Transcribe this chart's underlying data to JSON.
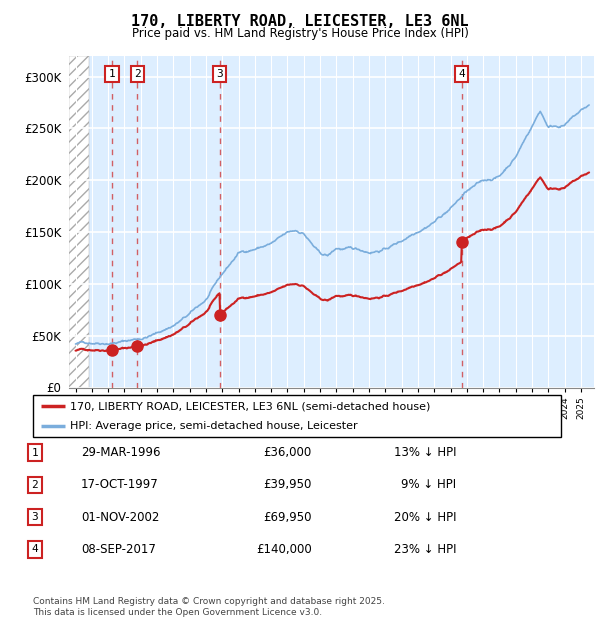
{
  "title": "170, LIBERTY ROAD, LEICESTER, LE3 6NL",
  "subtitle": "Price paid vs. HM Land Registry's House Price Index (HPI)",
  "ylim": [
    0,
    320000
  ],
  "yticks": [
    0,
    50000,
    100000,
    150000,
    200000,
    250000,
    300000
  ],
  "ytick_labels": [
    "£0",
    "£50K",
    "£100K",
    "£150K",
    "£200K",
    "£250K",
    "£300K"
  ],
  "hpi_color": "#7aaddc",
  "price_color": "#cc2222",
  "bg_color": "#ddeeff",
  "hatch_bg": "#e8e8e8",
  "transaction_years": [
    1996.25,
    1997.79,
    2002.84,
    2017.69
  ],
  "transaction_prices": [
    36000,
    39950,
    69950,
    140000
  ],
  "transaction_labels": [
    "1",
    "2",
    "3",
    "4"
  ],
  "legend_label_price": "170, LIBERTY ROAD, LEICESTER, LE3 6NL (semi-detached house)",
  "legend_label_hpi": "HPI: Average price, semi-detached house, Leicester",
  "table_data": [
    [
      "1",
      "29-MAR-1996",
      "£36,000",
      "13% ↓ HPI"
    ],
    [
      "2",
      "17-OCT-1997",
      "£39,950",
      "9% ↓ HPI"
    ],
    [
      "3",
      "01-NOV-2002",
      "£69,950",
      "20% ↓ HPI"
    ],
    [
      "4",
      "08-SEP-2017",
      "£140,000",
      "23% ↓ HPI"
    ]
  ],
  "footer": "Contains HM Land Registry data © Crown copyright and database right 2025.\nThis data is licensed under the Open Government Licence v3.0."
}
